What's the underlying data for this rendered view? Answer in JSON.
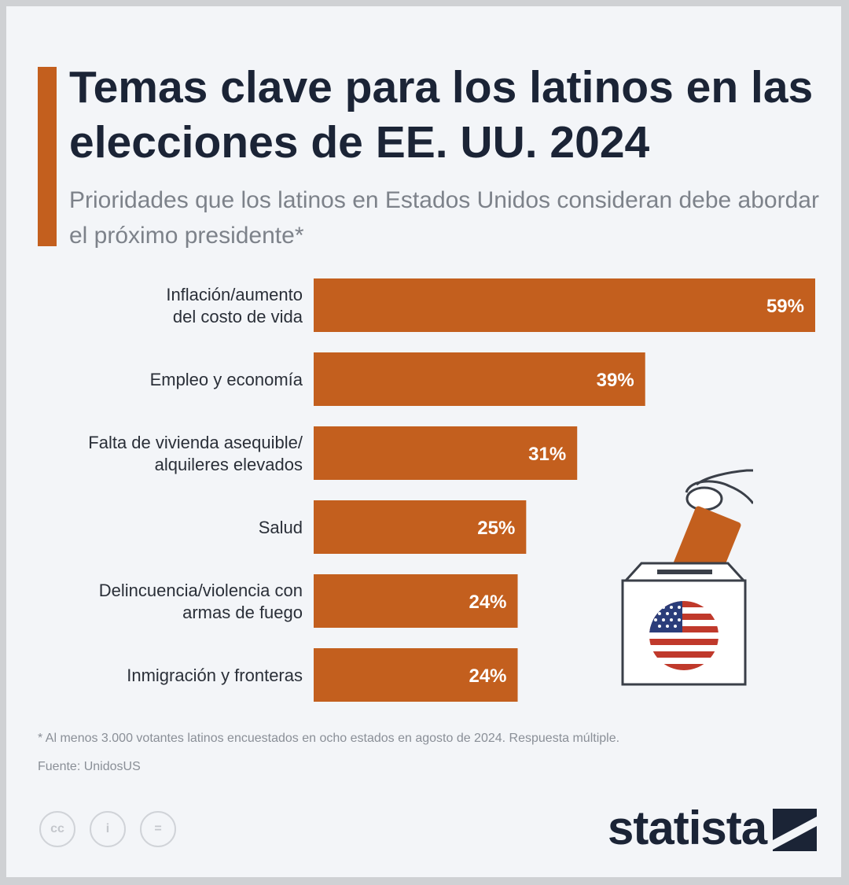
{
  "title": "Temas clave para los latinos en las elecciones de EE. UU. 2024",
  "subtitle": "Prioridades que los latinos en Estados Unidos consideran debe abordar el próximo presidente*",
  "chart_data": {
    "type": "bar",
    "orientation": "horizontal",
    "categories": [
      [
        "Inflación/aumento",
        "del costo de vida"
      ],
      [
        "Empleo y economía"
      ],
      [
        "Falta de vivienda asequible/",
        "alquileres elevados"
      ],
      [
        "Salud"
      ],
      [
        "Delincuencia/violencia con",
        "armas de fuego"
      ],
      [
        "Inmigración y fronteras"
      ]
    ],
    "values": [
      59,
      39,
      31,
      25,
      24,
      24
    ],
    "value_labels": [
      "59%",
      "39%",
      "31%",
      "25%",
      "24%",
      "24%"
    ],
    "unit": "%",
    "bar_color": "#c35f1e",
    "grid": false,
    "legend": "none"
  },
  "footnote": "* Al menos 3.000 votantes latinos encuestados en ocho estados en agosto de 2024. Respuesta múltiple.",
  "source": "Fuente: UnidosUS",
  "license_icons": [
    "cc",
    "i",
    "="
  ],
  "brand": "statista",
  "colors": {
    "accent": "#c35f1e",
    "title": "#1b2436",
    "background": "#f3f5f8"
  }
}
